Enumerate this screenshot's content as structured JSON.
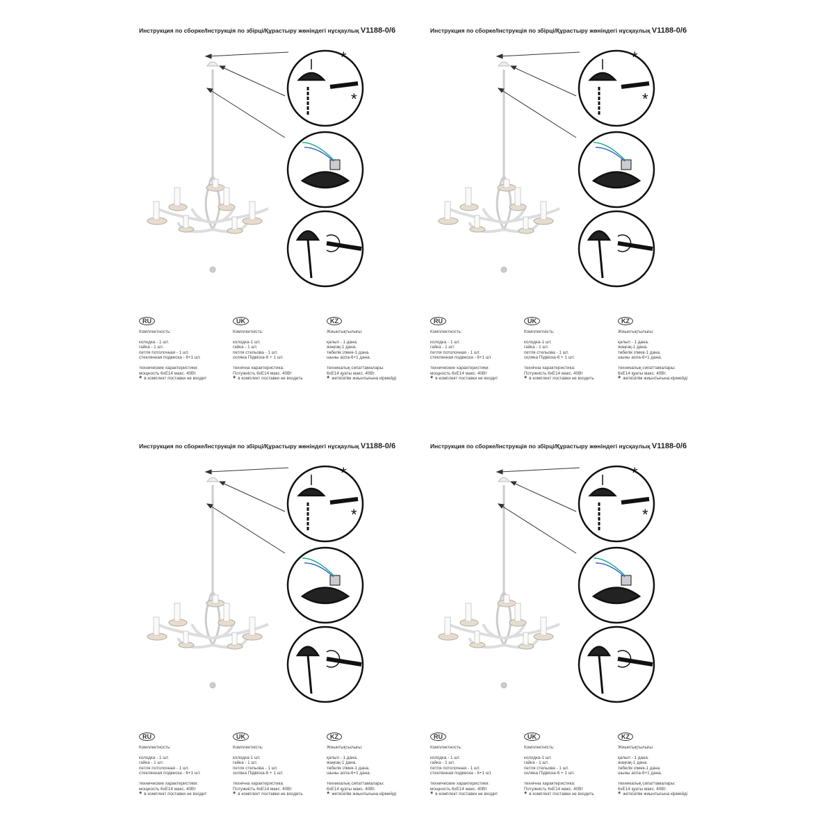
{
  "panel": {
    "title": "Инструкция по сборке/Інструкція по збірці/Құрастыру жөніндегі нұсқаулық",
    "model": "V1188-0/6",
    "asterisk": "*",
    "columns": [
      {
        "lang": "RU",
        "heading": "Комплектность:",
        "items": [
          "колодка - 1 шт.",
          "гайка - 1 шт.",
          "петля потолочная - 1 шт.",
          "стеклянная подвеска - 6+1 шт."
        ],
        "spec_heading": "технические характеристики:",
        "spec": "мощность 6хЕ14 макс. 40Вт",
        "note": "в комплект поставки не входит"
      },
      {
        "lang": "UK",
        "heading": "Комплектність:",
        "items": [
          "колодка-1 шт.",
          "гайка - 1 шт.",
          "петля стельова - 1 шт.",
          "скляна Підвіска-6 + 1 шт."
        ],
        "spec_heading": "технічна характеристика:",
        "spec": "Потужність 6хЕ14 макс. 40Вт",
        "note": "в комплект поставки не входить"
      },
      {
        "lang": "KZ",
        "heading": "Жиынтықтылығы:",
        "items": [
          "қалып - 1 дана.",
          "жаңғақ-1 дана.",
          "төбелік ілмек-1 дана.",
          "шыны аспа-6+1 дана."
        ],
        "spec_heading": "техникалық сипаттамалары:",
        "spec": "6хЕ14 қуаты макс. 40Вт.",
        "note": "жеткізілім жиынтығына кірмейді"
      }
    ]
  }
}
